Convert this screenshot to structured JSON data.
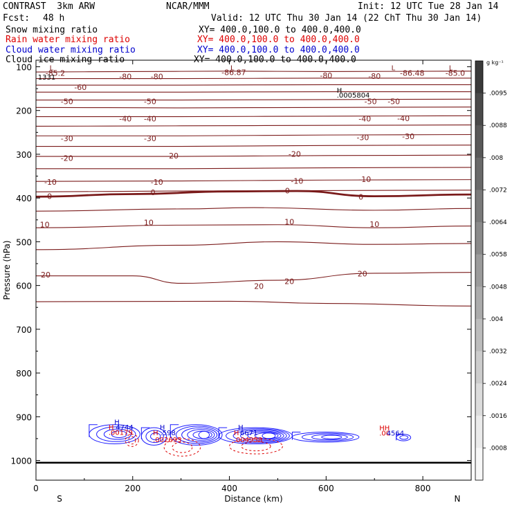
{
  "header": {
    "model": "CONTRAST  3km ARW",
    "org": "NCAR/MMM",
    "init": "Init: 12 UTC Tue 28 Jan 14",
    "fcst_label": "Fcst:",
    "fcst_value": "48 h",
    "valid": "Valid: 12 UTC Thu 30 Jan 14 (22 ChT Thu 30 Jan 14)"
  },
  "fields": [
    {
      "name": "Snow mixing ratio",
      "xy": "XY= 400.0,100.0 to 400.0,400.0",
      "color": "#000000"
    },
    {
      "name": "Rain water mixing ratio",
      "xy": "XY= 400.0,100.0 to 400.0,400.0",
      "color": "#dd0000"
    },
    {
      "name": "Cloud water mixing ratio",
      "xy": "XY= 400.0,100.0 to 400.0,400.0",
      "color": "#0000cc"
    },
    {
      "name": "Cloud ice mixing ratio",
      "xy": "XY= 400.0,100.0 to 400.0,400.0",
      "color": "#000000"
    }
  ],
  "chart_data": {
    "type": "contour",
    "xlabel": "Distance (km)",
    "ylabel": "Pressure (hPa)",
    "xlim": [
      0,
      900
    ],
    "ylim": [
      1045,
      85
    ],
    "xticks": [
      0,
      200,
      400,
      600,
      800
    ],
    "yticks": [
      100,
      200,
      300,
      400,
      500,
      600,
      700,
      800,
      900,
      1000
    ],
    "x_ends": {
      "left": "S",
      "right": "N"
    },
    "temperature_contour_color": "#7a1a1a",
    "temperature_contours": [
      {
        "level": -80,
        "points": [
          [
            0,
            112
          ],
          [
            200,
            111
          ],
          [
            400,
            110
          ],
          [
            600,
            111
          ],
          [
            900,
            110
          ]
        ]
      },
      {
        "level": -70,
        "points": [
          [
            0,
            127
          ],
          [
            300,
            127
          ],
          [
            600,
            126
          ],
          [
            900,
            126
          ]
        ]
      },
      {
        "level": -60,
        "points": [
          [
            0,
            142
          ],
          [
            300,
            142
          ],
          [
            600,
            141
          ],
          [
            900,
            141
          ]
        ]
      },
      {
        "level": -55,
        "points": [
          [
            0,
            158
          ],
          [
            300,
            158
          ],
          [
            600,
            157
          ],
          [
            900,
            157
          ]
        ]
      },
      {
        "level": -50,
        "points": [
          [
            0,
            176
          ],
          [
            300,
            176
          ],
          [
            600,
            175
          ],
          [
            900,
            174
          ]
        ]
      },
      {
        "level": -45,
        "points": [
          [
            0,
            193
          ],
          [
            300,
            194
          ],
          [
            600,
            193
          ],
          [
            900,
            192
          ]
        ]
      },
      {
        "level": -40,
        "points": [
          [
            0,
            214
          ],
          [
            300,
            214
          ],
          [
            600,
            213
          ],
          [
            900,
            212
          ]
        ]
      },
      {
        "level": -35,
        "points": [
          [
            0,
            236
          ],
          [
            300,
            235
          ],
          [
            600,
            234
          ],
          [
            900,
            233
          ]
        ]
      },
      {
        "level": -30,
        "points": [
          [
            0,
            258
          ],
          [
            300,
            258
          ],
          [
            600,
            256
          ],
          [
            900,
            255
          ]
        ]
      },
      {
        "level": -25,
        "points": [
          [
            0,
            282
          ],
          [
            300,
            282
          ],
          [
            600,
            280
          ],
          [
            900,
            279
          ]
        ]
      },
      {
        "level": -20,
        "points": [
          [
            0,
            305
          ],
          [
            300,
            305
          ],
          [
            600,
            303
          ],
          [
            900,
            302
          ]
        ]
      },
      {
        "level": -15,
        "points": [
          [
            0,
            333
          ],
          [
            300,
            333
          ],
          [
            600,
            331
          ],
          [
            900,
            330
          ]
        ]
      },
      {
        "level": -10,
        "points": [
          [
            0,
            362
          ],
          [
            300,
            361
          ],
          [
            600,
            359
          ],
          [
            900,
            358
          ]
        ]
      },
      {
        "level": -5,
        "points": [
          [
            0,
            386
          ],
          [
            300,
            384
          ],
          [
            600,
            383
          ],
          [
            900,
            382
          ]
        ]
      },
      {
        "level": 0,
        "points": [
          [
            0,
            397
          ],
          [
            200,
            391
          ],
          [
            400,
            385
          ],
          [
            540,
            384
          ],
          [
            700,
            396
          ],
          [
            900,
            392
          ]
        ]
      },
      {
        "level": 5,
        "points": [
          [
            0,
            430
          ],
          [
            300,
            425
          ],
          [
            450,
            422
          ],
          [
            700,
            428
          ],
          [
            900,
            424
          ]
        ]
      },
      {
        "level": 10,
        "points": [
          [
            0,
            468
          ],
          [
            300,
            462
          ],
          [
            500,
            461
          ],
          [
            700,
            468
          ],
          [
            900,
            464
          ]
        ]
      },
      {
        "level": 15,
        "points": [
          [
            0,
            518
          ],
          [
            300,
            508
          ],
          [
            500,
            500
          ],
          [
            700,
            506
          ],
          [
            900,
            504
          ]
        ]
      },
      {
        "level": 20,
        "points": [
          [
            0,
            578
          ],
          [
            200,
            578
          ],
          [
            300,
            595
          ],
          [
            500,
            588
          ],
          [
            700,
            572
          ],
          [
            900,
            570
          ]
        ]
      },
      {
        "level": 25,
        "points": [
          [
            0,
            637
          ],
          [
            400,
            636
          ],
          [
            600,
            641
          ],
          [
            900,
            647
          ]
        ]
      }
    ],
    "temperature_labels": [
      {
        "text": "-85.2",
        "x": 40,
        "y": 114
      },
      {
        "text": "-86.87",
        "x": 409,
        "y": 113
      },
      {
        "text": "-86.48",
        "x": 778,
        "y": 114
      },
      {
        "text": "-85.0",
        "x": 867,
        "y": 114
      },
      {
        "text": "-80",
        "x": 185,
        "y": 122
      },
      {
        "text": "-80",
        "x": 250,
        "y": 122
      },
      {
        "text": "-80",
        "x": 600,
        "y": 120
      },
      {
        "text": "-80",
        "x": 700,
        "y": 121
      },
      {
        "text": "-60",
        "x": 92,
        "y": 147
      },
      {
        "text": "-50",
        "x": 64,
        "y": 179
      },
      {
        "text": "-50",
        "x": 236,
        "y": 179
      },
      {
        "text": "-50",
        "x": 692,
        "y": 179
      },
      {
        "text": "-50",
        "x": 740,
        "y": 179
      },
      {
        "text": "-40",
        "x": 185,
        "y": 219
      },
      {
        "text": "-40",
        "x": 236,
        "y": 219
      },
      {
        "text": "-40",
        "x": 680,
        "y": 219
      },
      {
        "text": "-40",
        "x": 760,
        "y": 218
      },
      {
        "text": "-30",
        "x": 64,
        "y": 264
      },
      {
        "text": "-30",
        "x": 236,
        "y": 264
      },
      {
        "text": "-30",
        "x": 676,
        "y": 261
      },
      {
        "text": "-30",
        "x": 770,
        "y": 259
      },
      {
        "text": "-20",
        "x": 64,
        "y": 309
      },
      {
        "text": "-20",
        "x": 282,
        "y": 303
      },
      {
        "text": "-20",
        "x": 535,
        "y": 299
      },
      {
        "text": "-10",
        "x": 30,
        "y": 363
      },
      {
        "text": "-10",
        "x": 250,
        "y": 363
      },
      {
        "text": "-10",
        "x": 540,
        "y": 361
      },
      {
        "text": "-10",
        "x": 680,
        "y": 357
      },
      {
        "text": "0",
        "x": 28,
        "y": 396
      },
      {
        "text": "0",
        "x": 242,
        "y": 387
      },
      {
        "text": "0",
        "x": 520,
        "y": 383
      },
      {
        "text": "0",
        "x": 672,
        "y": 397
      },
      {
        "text": "10",
        "x": 18,
        "y": 461
      },
      {
        "text": "10",
        "x": 233,
        "y": 456
      },
      {
        "text": "10",
        "x": 524,
        "y": 454
      },
      {
        "text": "10",
        "x": 700,
        "y": 460
      },
      {
        "text": "20",
        "x": 20,
        "y": 575
      },
      {
        "text": "20",
        "x": 461,
        "y": 601
      },
      {
        "text": "20",
        "x": 524,
        "y": 590
      },
      {
        "text": "20",
        "x": 675,
        "y": 573
      }
    ],
    "misc_labels": [
      {
        "text": "L",
        "x": 28,
        "y": 102,
        "color": "#7a1a1a"
      },
      {
        "text": "L",
        "x": 402,
        "y": 102,
        "color": "#7a1a1a"
      },
      {
        "text": "L",
        "x": 735,
        "y": 102,
        "color": "#7a1a1a"
      },
      {
        "text": "L",
        "x": 854,
        "y": 102,
        "color": "#7a1a1a"
      },
      {
        "text": "1331",
        "x": 4,
        "y": 123,
        "color": "#000000"
      },
      {
        "text": "H",
        "x": 622,
        "y": 153,
        "color": "#000000"
      },
      {
        "text": ".0005804",
        "x": 622,
        "y": 164,
        "color": "#000000"
      },
      {
        "text": "H",
        "x": 162,
        "y": 911,
        "color": "#0000cc"
      },
      {
        "text": "H",
        "x": 150,
        "y": 923,
        "color": "#dd0000"
      },
      {
        "text": "4744",
        "x": 165,
        "y": 923,
        "color": "#0000cc"
      },
      {
        "text": ".00179",
        "x": 150,
        "y": 935,
        "color": "#dd0000"
      },
      {
        "text": "H",
        "x": 256,
        "y": 923,
        "color": "#0000cc"
      },
      {
        "text": "H",
        "x": 242,
        "y": 936,
        "color": "#dd0000"
      },
      {
        "text": ".598",
        "x": 257,
        "y": 936,
        "color": "#0000cc"
      },
      {
        "text": ".002695",
        "x": 242,
        "y": 952,
        "color": "#dd0000"
      },
      {
        "text": "H",
        "x": 418,
        "y": 923,
        "color": "#0000cc"
      },
      {
        "text": "H",
        "x": 409,
        "y": 936,
        "color": "#dd0000"
      },
      {
        "text": "6671",
        "x": 422,
        "y": 936,
        "color": "#0000cc"
      },
      {
        "text": ".004958",
        "x": 409,
        "y": 952,
        "color": "#dd0000"
      },
      {
        "text": "HH",
        "x": 710,
        "y": 925,
        "color": "#dd0000"
      },
      {
        "text": ".00",
        "x": 710,
        "y": 937,
        "color": "#dd0000"
      },
      {
        "text": "4564",
        "x": 725,
        "y": 937,
        "color": "#0000cc"
      }
    ],
    "cloud_water": [
      {
        "x0": 110,
        "x1": 215,
        "p0": 918,
        "p1": 962,
        "rings": 4
      },
      {
        "x0": 218,
        "x1": 270,
        "p0": 925,
        "p1": 965,
        "rings": 3
      },
      {
        "x0": 278,
        "x1": 385,
        "p0": 918,
        "p1": 965,
        "rings": 6
      },
      {
        "x0": 378,
        "x1": 530,
        "p0": 925,
        "p1": 962,
        "rings": 7
      },
      {
        "x0": 530,
        "x1": 668,
        "p0": 935,
        "p1": 958,
        "rings": 4
      },
      {
        "x0": 745,
        "x1": 775,
        "p0": 940,
        "p1": 955,
        "rings": 2
      }
    ],
    "rain_water": [
      {
        "x0": 185,
        "x1": 212,
        "p0": 940,
        "p1": 968
      },
      {
        "x0": 265,
        "x1": 340,
        "p0": 950,
        "p1": 990
      },
      {
        "x0": 400,
        "x1": 510,
        "p0": 950,
        "p1": 985
      }
    ],
    "surface_pressure": 1005,
    "colorbar": {
      "unit": "g kg⁻¹",
      "levels": [
        ".0095",
        ".0088",
        ".008",
        ".0072",
        ".0064",
        ".0058",
        ".0048",
        ".004",
        ".0032",
        ".0024",
        ".0016",
        ".0008"
      ],
      "colors": [
        "#3a3a3a",
        "#4a4a4a",
        "#595959",
        "#696969",
        "#7a7a7a",
        "#8a8a8a",
        "#9b9b9b",
        "#ababab",
        "#bcbcbc",
        "#cccccc",
        "#dcdcdc",
        "#ebebeb",
        "#f7f7f7"
      ]
    }
  }
}
